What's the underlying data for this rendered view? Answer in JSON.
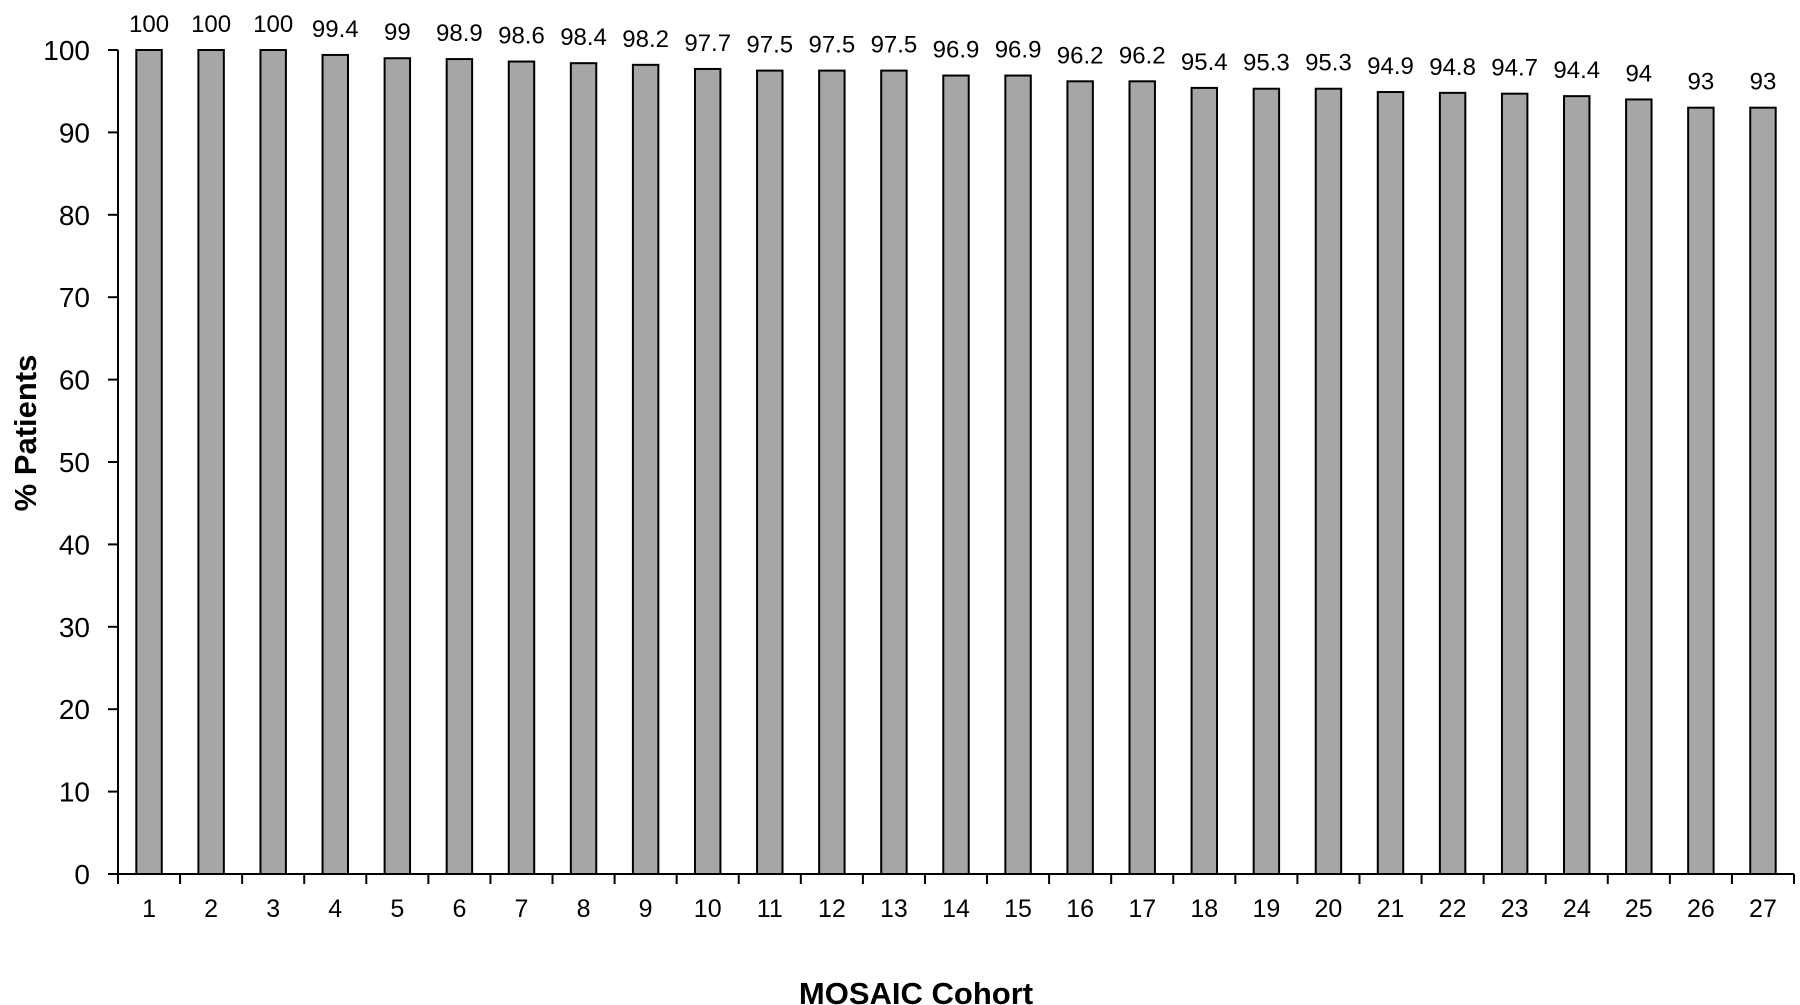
{
  "chart_data": {
    "type": "bar",
    "categories": [
      "1",
      "2",
      "3",
      "4",
      "5",
      "6",
      "7",
      "8",
      "9",
      "10",
      "11",
      "12",
      "13",
      "14",
      "15",
      "16",
      "17",
      "18",
      "19",
      "20",
      "21",
      "22",
      "23",
      "24",
      "25",
      "26",
      "27"
    ],
    "values": [
      100,
      100,
      100,
      99.4,
      99,
      98.9,
      98.6,
      98.4,
      98.2,
      97.7,
      97.5,
      97.5,
      97.5,
      96.9,
      96.9,
      96.2,
      96.2,
      95.4,
      95.3,
      95.3,
      94.9,
      94.8,
      94.7,
      94.4,
      94,
      93,
      93
    ],
    "data_labels": [
      "100",
      "100",
      "100",
      "99.4",
      "99",
      "98.9",
      "98.6",
      "98.4",
      "98.2",
      "97.7",
      "97.5",
      "97.5",
      "97.5",
      "96.9",
      "96.9",
      "96.2",
      "96.2",
      "95.4",
      "95.3",
      "95.3",
      "94.9",
      "94.8",
      "94.7",
      "94.4",
      "94",
      "93",
      "93"
    ],
    "title": "",
    "xlabel": "MOSAIC Cohort",
    "ylabel": "% Patients",
    "ylim": [
      0,
      100
    ],
    "yticks": [
      0,
      10,
      20,
      30,
      40,
      50,
      60,
      70,
      80,
      90,
      100
    ],
    "grid": false,
    "legend": "none",
    "bar_color": "#a6a6a6",
    "bar_edge_color": "#000000"
  }
}
